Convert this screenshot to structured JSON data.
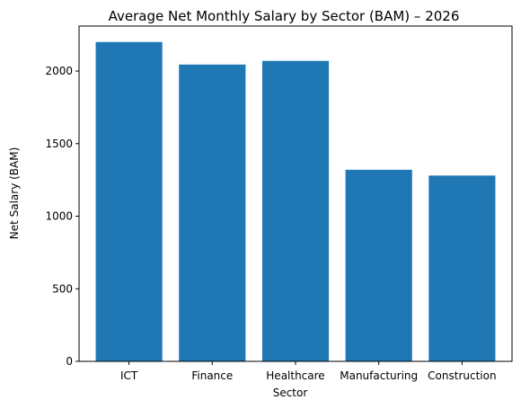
{
  "chart_data": {
    "type": "bar",
    "title": "Average Net Monthly Salary by Sector (BAM) – 2026",
    "xlabel": "Sector",
    "ylabel": "Net Salary (BAM)",
    "categories": [
      "ICT",
      "Finance",
      "Healthcare",
      "Manufacturing",
      "Construction"
    ],
    "values": [
      2200,
      2045,
      2070,
      1320,
      1280
    ],
    "ylim": [
      0,
      2310
    ],
    "yticks": [
      0,
      500,
      1000,
      1500,
      2000
    ],
    "grid": false,
    "bar_color": "#1f77b4"
  }
}
